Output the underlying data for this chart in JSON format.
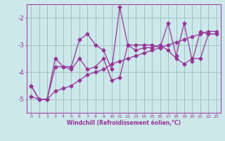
{
  "xlabel": "Windchill (Refroidissement éolien,°C)",
  "bg_color": "#cce8ea",
  "line_color": "#993399",
  "grid_color": "#99bbbb",
  "xlim": [
    -0.5,
    23.5
  ],
  "ylim": [
    -5.5,
    -1.5
  ],
  "yticks": [
    -5,
    -4,
    -3,
    -2
  ],
  "xticks": [
    0,
    1,
    2,
    3,
    4,
    5,
    6,
    7,
    8,
    9,
    10,
    11,
    12,
    13,
    14,
    15,
    16,
    17,
    18,
    19,
    20,
    21,
    22,
    23
  ],
  "line1_x": [
    0,
    1,
    2,
    3,
    4,
    5,
    6,
    7,
    8,
    9,
    10,
    11,
    12,
    13,
    14,
    15,
    16,
    17,
    18,
    19,
    20,
    21,
    22,
    23
  ],
  "line1_y": [
    -4.5,
    -5.0,
    -5.0,
    -3.5,
    -3.8,
    -3.8,
    -2.8,
    -2.6,
    -3.0,
    -3.2,
    -3.9,
    -1.6,
    -3.0,
    -3.0,
    -3.0,
    -3.0,
    -3.1,
    -2.2,
    -3.4,
    -2.2,
    -3.6,
    -2.5,
    -2.6,
    -2.6
  ],
  "line2_x": [
    0,
    1,
    2,
    3,
    4,
    5,
    6,
    7,
    8,
    9,
    10,
    11,
    12,
    13,
    14,
    15,
    16,
    17,
    18,
    19,
    20,
    21,
    22,
    23
  ],
  "line2_y": [
    -4.5,
    -5.0,
    -5.0,
    -3.8,
    -3.8,
    -3.9,
    -3.5,
    -3.9,
    -3.8,
    -3.5,
    -4.3,
    -4.2,
    -3.0,
    -3.2,
    -3.1,
    -3.1,
    -3.0,
    -3.2,
    -3.5,
    -3.7,
    -3.5,
    -3.5,
    -2.6,
    -2.6
  ],
  "line3_x": [
    0,
    1,
    2,
    3,
    4,
    5,
    6,
    7,
    8,
    9,
    10,
    11,
    12,
    13,
    14,
    15,
    16,
    17,
    18,
    19,
    20,
    21,
    22,
    23
  ],
  "line3_y": [
    -4.9,
    -5.0,
    -5.0,
    -4.7,
    -4.6,
    -4.5,
    -4.3,
    -4.1,
    -4.0,
    -3.9,
    -3.7,
    -3.6,
    -3.5,
    -3.4,
    -3.3,
    -3.2,
    -3.1,
    -3.0,
    -2.9,
    -2.8,
    -2.7,
    -2.6,
    -2.5,
    -2.5
  ],
  "marker": "D",
  "marker_size": 2.5,
  "linewidth": 0.9
}
